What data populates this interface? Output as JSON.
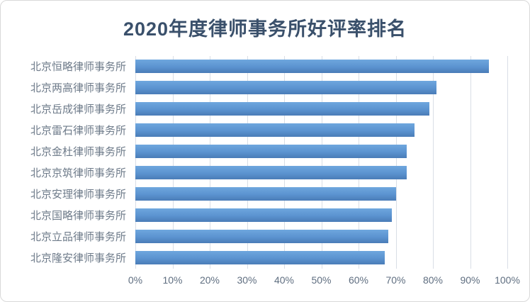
{
  "chart_data": {
    "type": "bar",
    "orientation": "horizontal",
    "title": "2020年度律师事务所好评率排名",
    "categories": [
      "北京恒略律师事务所",
      "北京两高律师事务所",
      "北京岳成律师事务所",
      "北京雷石律师事务所",
      "北京金杜律师事务所",
      "北京京筑律师事务所",
      "北京安理律师事务所",
      "北京国略律师事务所",
      "北京立品律师事务所",
      "北京隆安律师事务所"
    ],
    "values": [
      95,
      81,
      79,
      75,
      73,
      73,
      70,
      69,
      68,
      67
    ],
    "unit": "%",
    "xlabel": "",
    "ylabel": "",
    "xlim": [
      0,
      100
    ],
    "x_tick_labels": [
      "0%",
      "10%",
      "20%",
      "30%",
      "40%",
      "50%",
      "60%",
      "70%",
      "80%",
      "90%",
      "100%"
    ],
    "grid": true,
    "legend_visible": false,
    "colors": {
      "bar_gradient_top": "#6FA7DE",
      "bar_gradient_bottom": "#4A7CB7",
      "title_text": "#3A506B",
      "category_text": "#6E7B8A",
      "tick_text": "#5F6E80",
      "gridline": "#D9DEE6",
      "frame_border": "#D9D9D9",
      "background": "#FFFFFF"
    }
  }
}
